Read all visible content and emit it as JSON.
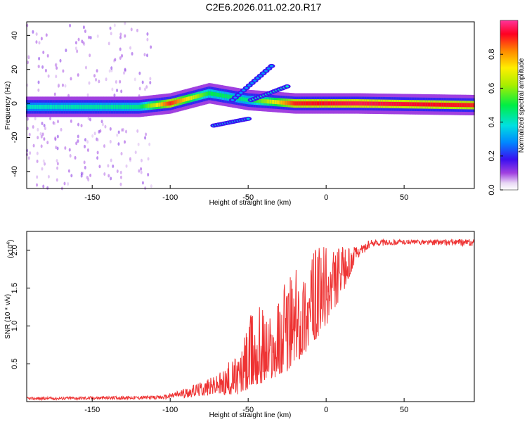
{
  "chart_data": [
    {
      "type": "heatmap",
      "title": "C2E6.2026.011.02.20.R17",
      "xlabel": "Height of straight line (km)",
      "ylabel": "Frequency (Hz)",
      "xlim": [
        -192,
        95
      ],
      "ylim": [
        -50,
        48
      ],
      "x_ticks": [
        "-150",
        "-100",
        "-50",
        "0",
        "50"
      ],
      "y_ticks": [
        "40",
        "20",
        "0",
        "-20",
        "-40"
      ],
      "colorbar": {
        "label": "Normalized spectral amplitude",
        "range": [
          0,
          1
        ],
        "ticks": [
          "0.0",
          "0.2",
          "0.4",
          "0.6",
          "0.8"
        ]
      },
      "description_points": [
        {
          "x": -192,
          "y": -2,
          "amp": 0.4
        },
        {
          "x": -120,
          "y": -2,
          "amp": 0.45
        },
        {
          "x": -100,
          "y": 0,
          "amp": 0.9
        },
        {
          "x": -75,
          "y": 6,
          "amp": 0.5
        },
        {
          "x": -50,
          "y": 2,
          "amp": 0.45
        },
        {
          "x": -45,
          "y": 15,
          "amp": 0.3
        },
        {
          "x": -55,
          "y": -12,
          "amp": 0.35
        },
        {
          "x": -20,
          "y": 0,
          "amp": 0.9
        },
        {
          "x": 20,
          "y": 0,
          "amp": 0.95
        },
        {
          "x": 95,
          "y": -1,
          "amp": 0.9
        }
      ]
    },
    {
      "type": "line",
      "xlabel": "Height of straight line (km)",
      "ylabel": "SNR (10 * v/v)",
      "multiplier": "(x10",
      "multiplier_exp": "4",
      "close_paren": ")",
      "xlim": [
        -192,
        95
      ],
      "ylim": [
        0,
        2.25
      ],
      "x_ticks": [
        "-150",
        "-100",
        "-50",
        "0",
        "50"
      ],
      "y_ticks": [
        "0.5",
        "1.0",
        "1.5",
        "2.0"
      ],
      "color": "#ee3333",
      "envelope": [
        {
          "x": -192,
          "lo": 0.02,
          "hi": 0.06
        },
        {
          "x": -105,
          "lo": 0.03,
          "hi": 0.08
        },
        {
          "x": -90,
          "lo": 0.05,
          "hi": 0.18
        },
        {
          "x": -70,
          "lo": 0.08,
          "hi": 0.35
        },
        {
          "x": -55,
          "lo": 0.1,
          "hi": 0.7
        },
        {
          "x": -45,
          "lo": 0.2,
          "hi": 1.4
        },
        {
          "x": -35,
          "lo": 0.3,
          "hi": 1.2
        },
        {
          "x": -25,
          "lo": 0.4,
          "hi": 1.7
        },
        {
          "x": -15,
          "lo": 0.6,
          "hi": 1.9
        },
        {
          "x": 0,
          "lo": 1.0,
          "hi": 2.1
        },
        {
          "x": 10,
          "lo": 1.4,
          "hi": 2.05
        },
        {
          "x": 20,
          "lo": 1.9,
          "hi": 2.05
        },
        {
          "x": 30,
          "lo": 2.05,
          "hi": 2.15
        },
        {
          "x": 50,
          "lo": 2.08,
          "hi": 2.14
        },
        {
          "x": 95,
          "lo": 2.05,
          "hi": 2.15
        }
      ]
    }
  ]
}
